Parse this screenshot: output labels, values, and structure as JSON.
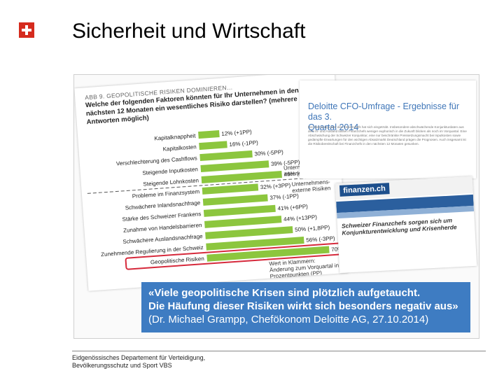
{
  "slide": {
    "title": "Sicherheit und Wirtschaft",
    "footer_line1": "Eidgenössisches Departement für Verteidigung,",
    "footer_line2": "Bevölkerungsschutz und Sport VBS"
  },
  "chart": {
    "kicker": "ABB 9. GEOPOLITISCHE RISIKEN DOMINIEREN…",
    "question_line1": "Welche der folgenden Faktoren könnten für Ihr Unternehmen in den",
    "question_line2": "nächsten 12 Monaten ein wesentliches Risiko darstellen? (mehrere",
    "question_line3": "Antworten möglich)",
    "internal_label_1": "Unternehmens-",
    "internal_label_2": "interne Risiken",
    "external_label_1": "Unternehmens-",
    "external_label_2": "externe Risiken",
    "note_line1": "Wert in Klammern:",
    "note_line2": "Änderung zum Vorquartal in",
    "note_line3": "Prozentpunkten (PP)",
    "bar_color": "#8cc63e",
    "highlight_color": "#d6293b",
    "chart_data": {
      "type": "bar",
      "orientation": "horizontal",
      "unit": "%",
      "categories": [
        "Kapitalknappheit",
        "Kapitalkosten",
        "Verschlechterung des Cashflows",
        "Steigende Inputkosten",
        "Steigende Lohnkosten",
        "Probleme im Finanzsystem",
        "Schwächere Inlandsnachfrage",
        "Stärke des Schweizer Frankens",
        "Zunahme von Handelsbarrieren",
        "Schwächere Auslandsnachfrage",
        "Zunehmende Regulierung in der Schweiz",
        "Geopolitische Risiken"
      ],
      "values": [
        12,
        16,
        30,
        39,
        46,
        32,
        37,
        41,
        44,
        50,
        56,
        70
      ],
      "labels": [
        "12% (+1PP)",
        "16% (-1PP)",
        "30% (-5PP)",
        "39% (-5PP)",
        "46% (+4PP)",
        "32% (+3PP)",
        "37% (-1PP)",
        "41% (+6PP)",
        "44% (+13PP)",
        "50% (+1,8PP)",
        "56% (-3PP)",
        "70% (+16PP)"
      ],
      "highlighted": "Geopolitische Risiken",
      "xlim": [
        0,
        100
      ]
    }
  },
  "deloitte": {
    "title_line1": "Deloitte CFO-Umfrage - Ergebnisse für das 3.",
    "title_line2": "Quartal 2014",
    "body": "Die Stimmung unter den Finanzchefs hat sich eingetrübt. Insbesondere abschwächende Konjunkturdaten aus dem In- und Ausland lassen Finanzchefs weniger euphorisch in die Zukunft blicken als noch im Vorquartal. Eine Abschwächung der Schweizer Konjunktur, eine nur beschränkte Preissetzungsmacht bei Inputkosten sowie gedämpfte Erwartungen für den wichtigen Absatzmarkt Deutschland prägen die Prognosen. Auch insgesamt ist die Risikobereitschaft bei Finanzchefs in den nächsten 12 Monaten gesunken."
  },
  "finanzen": {
    "brand": "finanzen.ch",
    "headline_line1": "Schweizer Finanzchefs sorgen sich um",
    "headline_line2": "Konjunkturentwicklung und Krisenherde"
  },
  "quote": {
    "line1": "«Viele geopolitische Krisen sind plötzlich aufgetaucht.",
    "line2": "Die Häufung dieser Risiken wirkt sich besonders negativ aus»",
    "line3": "(Dr. Michael Grampp, Chefökonom Deloitte AG, 27.10.2014)"
  }
}
